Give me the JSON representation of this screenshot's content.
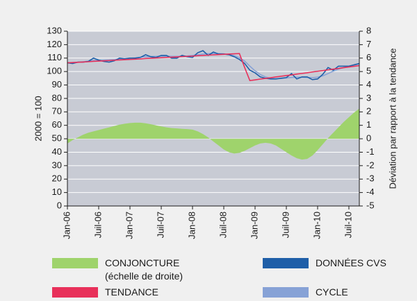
{
  "chart_data": {
    "type": "line",
    "ylabel": "2000 = 100",
    "y2label": "Déviation par rapport à la tendance",
    "categories": [
      "Jan-06",
      null,
      null,
      null,
      null,
      null,
      "Juil-06",
      null,
      null,
      null,
      null,
      null,
      "Jan-07",
      null,
      null,
      null,
      null,
      null,
      "Juil-07",
      null,
      null,
      null,
      null,
      null,
      "Jan-08",
      null,
      null,
      null,
      null,
      null,
      "Juil-08",
      null,
      null,
      null,
      null,
      null,
      "Jan-09",
      null,
      null,
      null,
      null,
      null,
      "Juil-09",
      null,
      null,
      null,
      null,
      null,
      "Jan-10",
      null,
      null,
      null,
      null,
      null,
      "Juil-10",
      null,
      null
    ],
    "ylim": [
      0,
      130
    ],
    "yticks": [
      0,
      10,
      20,
      30,
      40,
      50,
      60,
      70,
      80,
      90,
      100,
      110,
      120,
      130
    ],
    "y2lim": [
      -5,
      8
    ],
    "y2ticks": [
      -5,
      -4,
      -3,
      -2,
      -1,
      0,
      1,
      2,
      3,
      4,
      5,
      6,
      7,
      8
    ],
    "grid": true,
    "plot_background": "#c8cbd4",
    "series": [
      {
        "name": "CONJONCTURE\n(échelle de droite)",
        "color": "#9fd36c",
        "style": "area",
        "axis": "y2",
        "values": [
          -0.35,
          -0.1,
          0.1,
          0.3,
          0.45,
          0.55,
          0.65,
          0.75,
          0.85,
          0.95,
          1.05,
          1.12,
          1.17,
          1.2,
          1.2,
          1.15,
          1.08,
          1.0,
          0.92,
          0.85,
          0.8,
          0.77,
          0.74,
          0.72,
          0.68,
          0.55,
          0.35,
          0.1,
          -0.2,
          -0.5,
          -0.8,
          -1.0,
          -1.1,
          -1.05,
          -0.9,
          -0.7,
          -0.5,
          -0.35,
          -0.3,
          -0.35,
          -0.5,
          -0.75,
          -1.0,
          -1.25,
          -1.45,
          -1.55,
          -1.5,
          -1.25,
          -0.85,
          -0.4,
          0.05,
          0.45,
          0.85,
          1.25,
          1.6,
          1.95,
          2.25
        ]
      },
      {
        "name": "DONNÉES CVS",
        "color": "#1f5fa8",
        "style": "line",
        "values": [
          106.5,
          106,
          107,
          107,
          107.5,
          110,
          108.5,
          107.5,
          107,
          108,
          110,
          109.5,
          110,
          110,
          110.5,
          112.5,
          111,
          110.5,
          112,
          112,
          110,
          110,
          112,
          111,
          110.5,
          114,
          115.5,
          112,
          114.5,
          113,
          113,
          112.5,
          111,
          109,
          106,
          101,
          99,
          96,
          95,
          94.5,
          94.5,
          95,
          95.5,
          98.5,
          94.5,
          96,
          96,
          94,
          94.5,
          98,
          103,
          101,
          104,
          104,
          104,
          105,
          106
        ]
      },
      {
        "name": "TENDANCE",
        "color": "#e8305a",
        "style": "line",
        "values": [
          106.5,
          106.7,
          106.9,
          107.1,
          107.3,
          107.6,
          107.8,
          108,
          108.2,
          108.4,
          108.6,
          108.8,
          109,
          109.2,
          109.4,
          109.7,
          109.9,
          110.1,
          110.3,
          110.5,
          110.7,
          110.9,
          111.1,
          111.3,
          111.5,
          111.8,
          112,
          112.2,
          112.4,
          112.6,
          112.8,
          113,
          113.2,
          113.4,
          103,
          93.3,
          93.8,
          94.4,
          94.9,
          95.4,
          96,
          96.5,
          97,
          97.5,
          98.1,
          98.6,
          99.1,
          99.7,
          100.2,
          100.7,
          101.3,
          101.8,
          102.3,
          102.9,
          103.4,
          103.9,
          104.4
        ]
      },
      {
        "name": "CYCLE",
        "color": "#87a2d6",
        "style": "line",
        "values": [
          106.5,
          106.6,
          106.9,
          107.3,
          107.8,
          108.2,
          108.4,
          108.5,
          108.6,
          108.9,
          109.3,
          109.6,
          109.9,
          110.2,
          110.6,
          111,
          111.2,
          111.3,
          111.4,
          111.4,
          111.3,
          111.3,
          111.4,
          111.6,
          112,
          112.5,
          113,
          113.3,
          113.4,
          113.4,
          113.2,
          112.7,
          111.8,
          110.3,
          107.8,
          104,
          100.5,
          97.8,
          96,
          95,
          94.7,
          94.8,
          95.2,
          95.6,
          95.8,
          95.8,
          95.6,
          95.5,
          95.8,
          96.8,
          98.5,
          100.3,
          101.8,
          103,
          104,
          104.8,
          105.6
        ]
      }
    ]
  }
}
